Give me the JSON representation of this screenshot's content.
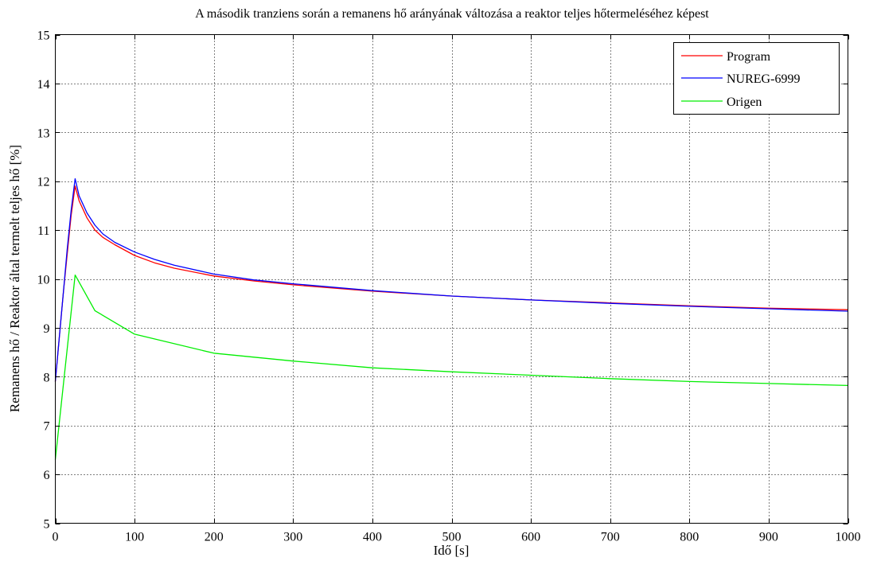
{
  "chart_data": {
    "type": "line",
    "title": "A második tranziens során a remanens hő arányának változása a reaktor teljes hőtermeléséhez képest",
    "xlabel": "Idő [s]",
    "ylabel": "Remanens hő / Reaktor által termelt teljes hő [%]",
    "xlim": [
      0,
      1000
    ],
    "ylim": [
      5,
      15
    ],
    "x_ticks": [
      0,
      100,
      200,
      300,
      400,
      500,
      600,
      700,
      800,
      900,
      1000
    ],
    "y_ticks": [
      5,
      6,
      7,
      8,
      9,
      10,
      11,
      12,
      13,
      14,
      15
    ],
    "x_tick_labels": [
      "0",
      "100",
      "200",
      "300",
      "400",
      "500",
      "600",
      "700",
      "800",
      "900",
      "1000"
    ],
    "y_tick_labels": [
      "5",
      "6",
      "7",
      "8",
      "9",
      "10",
      "11",
      "12",
      "13",
      "14",
      "15"
    ],
    "grid": true,
    "legend_position": "top-right",
    "series": [
      {
        "name": "Program",
        "color": "#ff0000",
        "x": [
          0,
          5,
          10,
          15,
          20,
          25,
          30,
          40,
          50,
          60,
          75,
          100,
          125,
          150,
          200,
          250,
          300,
          400,
          500,
          600,
          700,
          800,
          900,
          1000
        ],
        "y": [
          7.9,
          8.8,
          9.7,
          10.5,
          11.3,
          11.9,
          11.6,
          11.25,
          11.0,
          10.85,
          10.7,
          10.48,
          10.33,
          10.22,
          10.06,
          9.96,
          9.88,
          9.75,
          9.65,
          9.57,
          9.51,
          9.45,
          9.4,
          9.37
        ]
      },
      {
        "name": "NUREG-6999",
        "color": "#0000ff",
        "x": [
          0,
          5,
          10,
          15,
          20,
          25,
          30,
          40,
          50,
          60,
          75,
          100,
          125,
          150,
          200,
          250,
          300,
          400,
          500,
          600,
          700,
          800,
          900,
          1000
        ],
        "y": [
          7.9,
          8.8,
          9.7,
          10.6,
          11.4,
          12.05,
          11.7,
          11.35,
          11.1,
          10.92,
          10.75,
          10.55,
          10.4,
          10.28,
          10.1,
          9.98,
          9.9,
          9.76,
          9.65,
          9.57,
          9.5,
          9.44,
          9.39,
          9.34
        ]
      },
      {
        "name": "Origen",
        "color": "#00ee00",
        "x": [
          0,
          25,
          50,
          100,
          200,
          300,
          400,
          500,
          600,
          700,
          800,
          900,
          1000
        ],
        "y": [
          6.3,
          10.08,
          9.35,
          8.87,
          8.48,
          8.32,
          8.18,
          8.1,
          8.03,
          7.96,
          7.9,
          7.86,
          7.82
        ]
      }
    ]
  }
}
